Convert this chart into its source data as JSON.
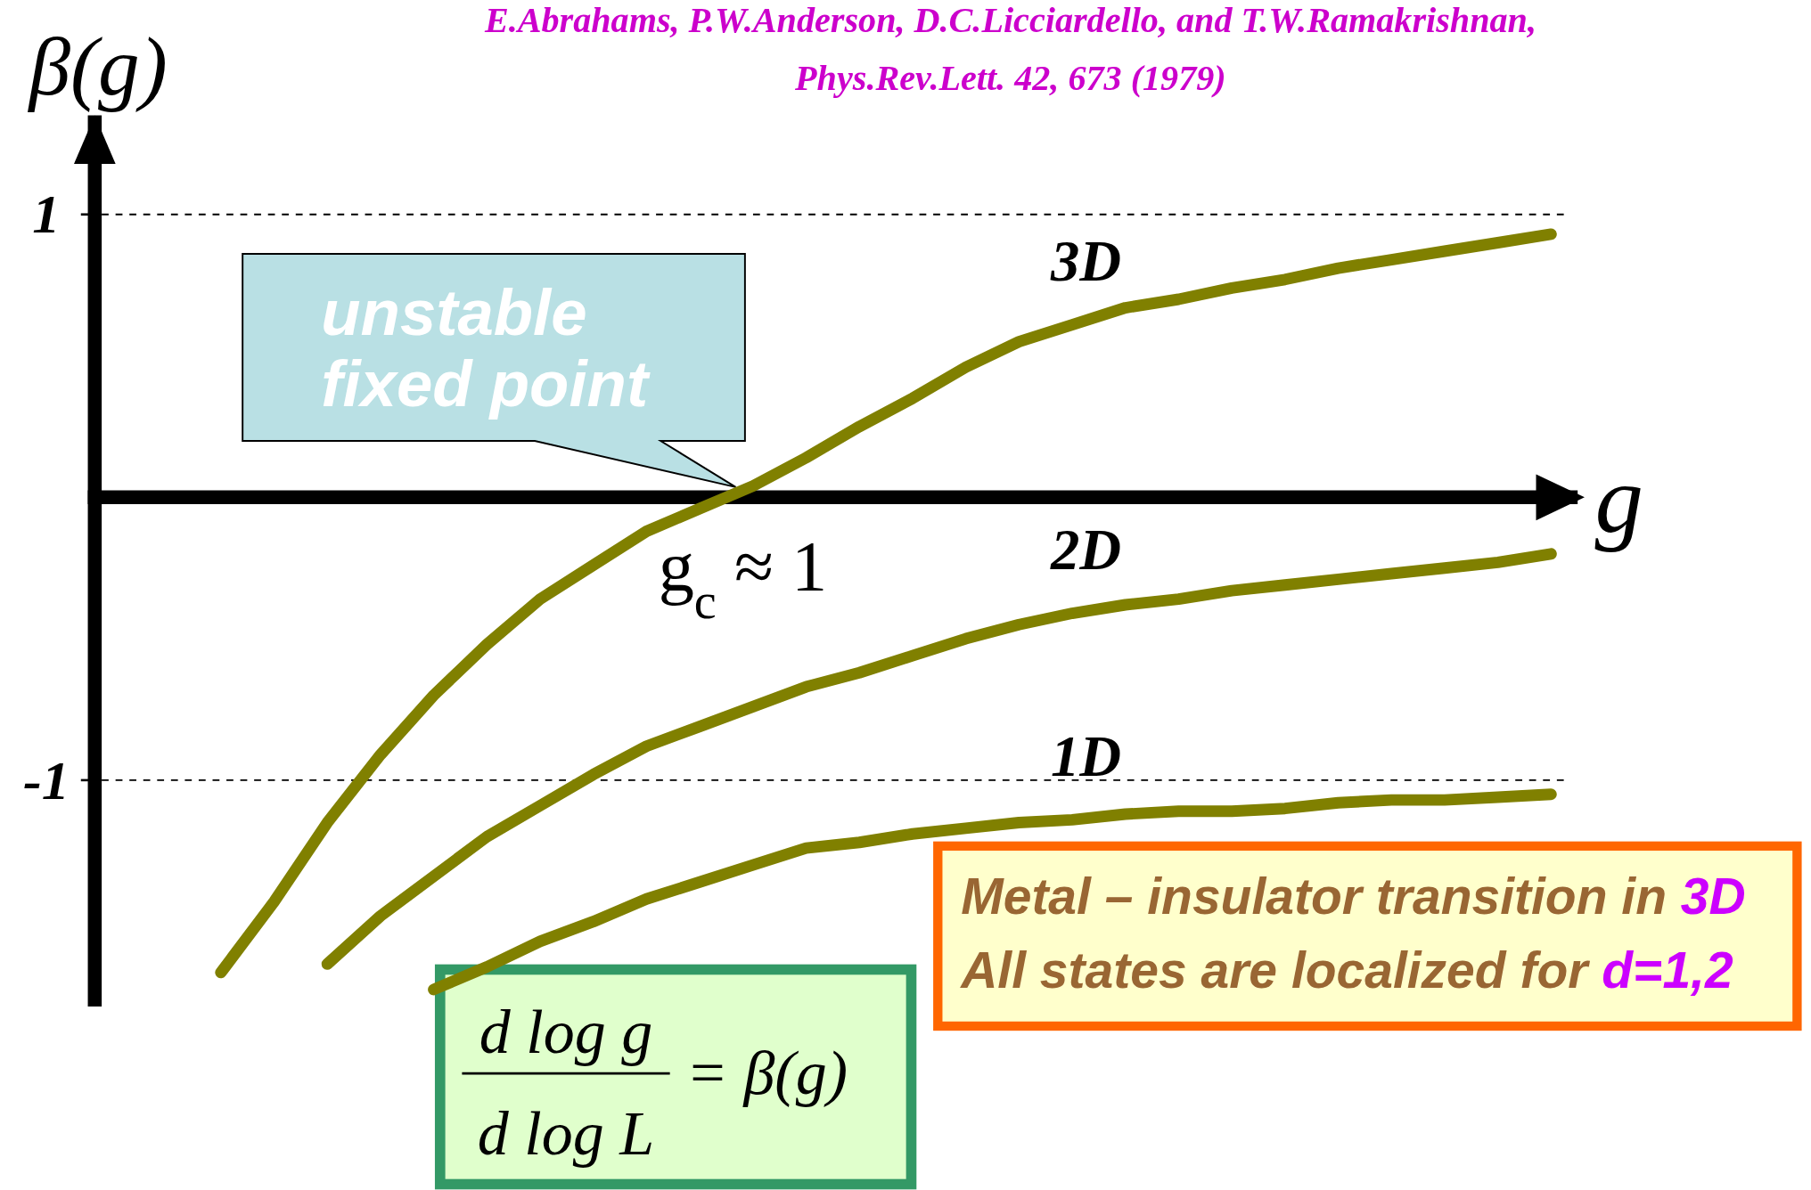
{
  "chart_data": {
    "type": "line",
    "title": "E.Abrahams, P.W.Anderson, D.C.Licciardello, and T.W.Ramakrishnan,",
    "subtitle": "Phys.Rev.Lett. 42, 673 (1979)",
    "xlabel": "g",
    "ylabel": "β(g)",
    "categories": [
      null,
      null,
      null,
      null,
      null,
      null,
      null,
      null,
      null,
      null,
      null,
      null,
      null,
      null,
      null,
      null,
      null,
      null,
      null,
      null,
      null,
      null,
      null,
      null,
      null,
      null,
      null,
      null
    ],
    "series": [
      {
        "name": "3D",
        "color": "#808000",
        "values": [
          null,
          null,
          -1.68,
          -1.43,
          -1.15,
          -0.91,
          -0.7,
          -0.52,
          -0.36,
          -0.24,
          -0.12,
          -0.04,
          0.04,
          0.14,
          0.25,
          0.35,
          0.46,
          0.55,
          0.61,
          0.67,
          0.7,
          0.74,
          0.77,
          0.81,
          0.84,
          0.87,
          0.9,
          0.93
        ]
      },
      {
        "name": "2D",
        "color": "#808000",
        "values": [
          null,
          null,
          null,
          null,
          -1.65,
          -1.48,
          -1.34,
          -1.2,
          -1.09,
          -0.98,
          -0.88,
          -0.81,
          -0.74,
          -0.67,
          -0.62,
          -0.56,
          -0.5,
          -0.45,
          -0.41,
          -0.38,
          -0.36,
          -0.33,
          -0.31,
          -0.29,
          -0.27,
          -0.25,
          -0.23,
          -0.2
        ]
      },
      {
        "name": "1D",
        "color": "#808000",
        "values": [
          null,
          null,
          null,
          null,
          null,
          null,
          -1.74,
          -1.66,
          -1.57,
          -1.5,
          -1.42,
          -1.36,
          -1.3,
          -1.24,
          -1.22,
          -1.19,
          -1.17,
          -1.15,
          -1.14,
          -1.12,
          -1.11,
          -1.11,
          -1.1,
          -1.08,
          -1.07,
          -1.07,
          -1.06,
          -1.05
        ]
      }
    ],
    "ylim": [
      -1.8,
      1.35
    ],
    "yticks": [
      -1,
      1
    ],
    "ref_lines": [
      {
        "axis": "y",
        "value": 1,
        "line_style": "dashed",
        "color": "#000000"
      },
      {
        "axis": "y",
        "value": -1,
        "line_style": "dashed",
        "color": "#000000"
      }
    ],
    "annotations": [
      "unstable fixed point",
      "g$_{c}$ ≈ 1",
      "d log g",
      "d log L",
      "= β(g)",
      "Metal – insulator transition in 3D",
      "All states are localized for d=1,2"
    ]
  }
}
